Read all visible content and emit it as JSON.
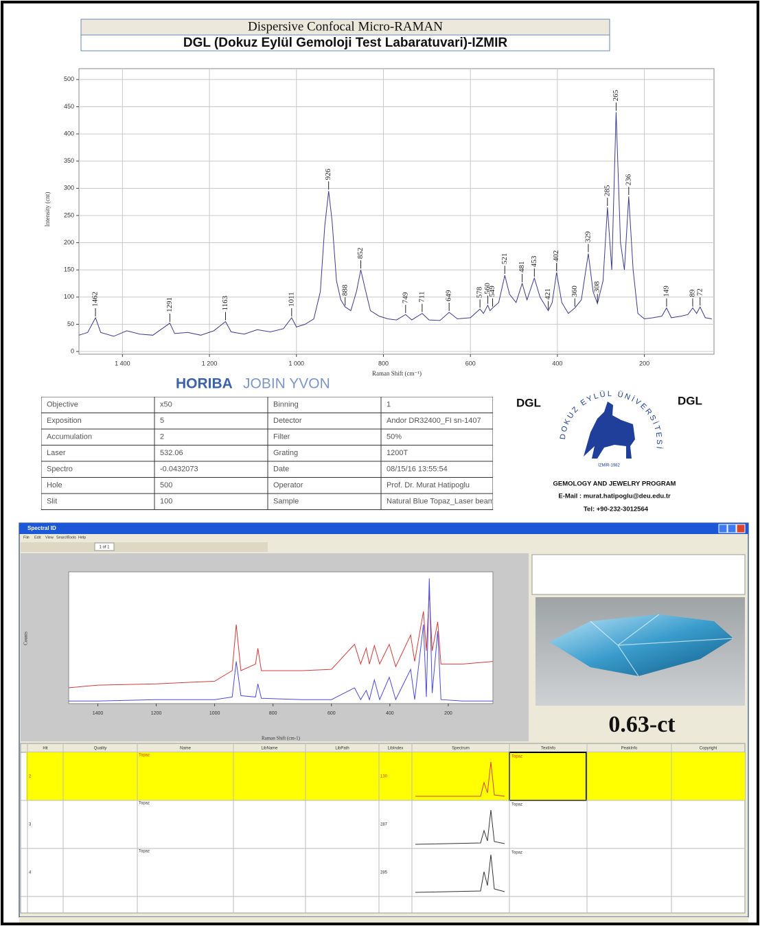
{
  "header": {
    "title": "Dispersive Confocal Micro-RAMAN",
    "subtitle": "DGL (Dokuz Eylül Gemoloji Test Labaratuvari)-IZMIR"
  },
  "chart_data": [
    {
      "type": "line",
      "x_label": "Raman Shift (cm⁻¹)",
      "y_label": "Intensity (cnt)",
      "x": [
        1500,
        1480,
        1462,
        1450,
        1420,
        1390,
        1360,
        1330,
        1291,
        1280,
        1250,
        1220,
        1190,
        1163,
        1150,
        1120,
        1090,
        1060,
        1030,
        1011,
        1000,
        980,
        960,
        945,
        935,
        926,
        918,
        908,
        898,
        888,
        875,
        862,
        852,
        842,
        830,
        810,
        790,
        770,
        749,
        735,
        711,
        695,
        670,
        649,
        630,
        600,
        578,
        570,
        560,
        555,
        549,
        535,
        521,
        510,
        495,
        481,
        470,
        453,
        440,
        421,
        412,
        402,
        390,
        375,
        360,
        345,
        329,
        318,
        308,
        295,
        285,
        275,
        265,
        255,
        246,
        236,
        226,
        215,
        200,
        180,
        160,
        149,
        138,
        115,
        100,
        89,
        80,
        72,
        60,
        45
      ],
      "series": [
        {
          "color": "#3a3a8c",
          "values": [
            30,
            35,
            62,
            35,
            28,
            38,
            32,
            30,
            52,
            33,
            35,
            30,
            38,
            55,
            36,
            32,
            40,
            36,
            42,
            62,
            45,
            50,
            60,
            110,
            230,
            295,
            240,
            130,
            95,
            82,
            75,
            110,
            150,
            115,
            75,
            65,
            60,
            58,
            68,
            58,
            70,
            58,
            57,
            72,
            60,
            62,
            78,
            70,
            85,
            75,
            80,
            90,
            140,
            105,
            90,
            125,
            95,
            135,
            100,
            75,
            90,
            145,
            90,
            70,
            80,
            95,
            180,
            110,
            88,
            130,
            265,
            150,
            440,
            200,
            150,
            285,
            150,
            70,
            60,
            62,
            65,
            80,
            62,
            65,
            68,
            80,
            70,
            82,
            62,
            60
          ]
        }
      ],
      "xlim": [
        1500,
        40
      ],
      "xticks": [
        {
          "value": 1400,
          "label": "1 400"
        },
        {
          "value": 1200,
          "label": "1 200"
        },
        {
          "value": 1000,
          "label": "1 000"
        },
        800,
        600,
        400,
        200
      ],
      "ylim": [
        -5,
        520
      ],
      "yticks": [
        0,
        50,
        100,
        150,
        200,
        250,
        300,
        350,
        400,
        450,
        500
      ],
      "grid": true,
      "annotations": [
        {
          "x": 1462,
          "y": 62
        },
        {
          "x": 1291,
          "y": 52
        },
        {
          "x": 1163,
          "y": 55
        },
        {
          "x": 1011,
          "y": 62
        },
        {
          "x": 926,
          "y": 295
        },
        {
          "x": 888,
          "y": 82
        },
        {
          "x": 852,
          "y": 150
        },
        {
          "x": 749,
          "y": 68
        },
        {
          "x": 711,
          "y": 70
        },
        {
          "x": 649,
          "y": 72
        },
        {
          "x": 578,
          "y": 78
        },
        {
          "x": 560,
          "y": 85
        },
        {
          "x": 549,
          "y": 80
        },
        {
          "x": 521,
          "y": 140
        },
        {
          "x": 481,
          "y": 125
        },
        {
          "x": 453,
          "y": 135
        },
        {
          "x": 421,
          "y": 75
        },
        {
          "x": 402,
          "y": 145
        },
        {
          "x": 360,
          "y": 80
        },
        {
          "x": 329,
          "y": 180
        },
        {
          "x": 308,
          "y": 88
        },
        {
          "x": 285,
          "y": 265
        },
        {
          "x": 265,
          "y": 440
        },
        {
          "x": 236,
          "y": 285
        },
        {
          "x": 149,
          "y": 80
        },
        {
          "x": 89,
          "y": 80
        },
        {
          "x": 72,
          "y": 82
        }
      ]
    },
    {
      "type": "line",
      "x_label": "Raman Shift (cm-1)",
      "y_label": "Counts",
      "x": [
        1500,
        1400,
        1200,
        1000,
        940,
        926,
        910,
        860,
        852,
        840,
        700,
        600,
        521,
        500,
        481,
        470,
        453,
        435,
        402,
        380,
        329,
        315,
        285,
        275,
        265,
        255,
        236,
        225,
        150,
        47
      ],
      "series": [
        {
          "color": "#d23a3a",
          "values": [
            12,
            14,
            15,
            17,
            25,
            60,
            25,
            30,
            42,
            25,
            25,
            26,
            45,
            30,
            42,
            30,
            44,
            30,
            45,
            28,
            52,
            32,
            70,
            40,
            85,
            40,
            62,
            30,
            30,
            32
          ]
        },
        {
          "color": "#4a4ad8",
          "values": [
            2,
            2,
            3,
            3,
            5,
            32,
            6,
            5,
            15,
            4,
            3,
            3,
            12,
            3,
            10,
            3,
            18,
            3,
            20,
            3,
            26,
            3,
            60,
            5,
            95,
            8,
            55,
            3,
            2,
            2
          ]
        }
      ],
      "xlim": [
        1500,
        47
      ],
      "xticks": [
        1400,
        1200,
        1000,
        800,
        600,
        400,
        200
      ],
      "ylim": [
        0,
        100
      ]
    }
  ],
  "brand": {
    "name": "HORIBA",
    "suffix": "JOBIN YVON"
  },
  "info_table": {
    "rows": [
      [
        "Objective",
        "x50",
        "Binning",
        "1"
      ],
      [
        "Exposition",
        "5",
        "Detector",
        "Andor DR32400_FI sn-1407"
      ],
      [
        "Accumulation",
        "2",
        "Filter",
        "50%"
      ],
      [
        "Laser",
        "532.06",
        "Grating",
        "1200T"
      ],
      [
        "Spectro",
        "-0.0432073",
        "Date",
        "08/15/16 13:55:54"
      ],
      [
        "Hole",
        "500",
        "Operator",
        "Prof. Dr. Murat Hatipoglu"
      ],
      [
        "Slit",
        "100",
        "Sample",
        "Natural Blue Topaz_Laser beam"
      ]
    ]
  },
  "logo": {
    "left": "DGL",
    "right": "DGL",
    "arc": "DOKUZ EYLÜL ÜNİVERSİTESİ",
    "founded": "İZMİR-1982",
    "program": "GEMOLOGY AND JEWELRY PROGRAM",
    "email": "E-Mail : murat.hatipoglu@deu.edu.tr",
    "phone": "Tel: +90-232-3012564"
  },
  "software": {
    "title": "Spectral ID",
    "menu": [
      "File",
      "Edit",
      "View",
      "Search",
      "Tools",
      "Help"
    ],
    "page": "1 of 1",
    "caption": "0.63-ct",
    "results": {
      "columns": [
        "Hit",
        "Quality",
        "Name",
        "LibName",
        "LibPath",
        "LibIndex",
        "Spectrum",
        "TextInfo",
        "PeakInfo",
        "Copyright"
      ],
      "rows": [
        {
          "hit": "2",
          "name": "Topaz",
          "index": "130"
        },
        {
          "hit": "3",
          "name": "Topaz",
          "index": "287"
        },
        {
          "hit": "4",
          "name": "Topaz",
          "index": "285"
        }
      ]
    }
  }
}
